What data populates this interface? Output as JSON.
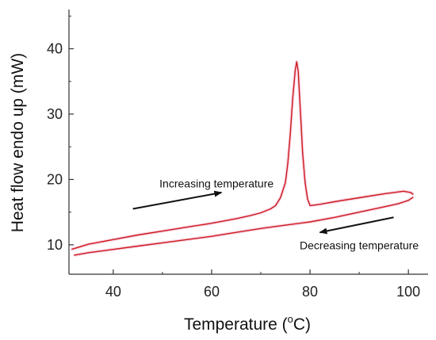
{
  "chart_data": {
    "type": "line",
    "xlabel": "Temperature (",
    "xlabel_sup": "o",
    "xlabel_suffix": "C)",
    "ylabel": "Heat flow endo up (mW)",
    "xlim": [
      31,
      104
    ],
    "ylim": [
      5.5,
      46
    ],
    "xticks": [
      40,
      60,
      80,
      100
    ],
    "yticks": [
      10,
      20,
      30,
      40
    ],
    "grid": false,
    "series": [
      {
        "x": [
          31.5,
          35,
          40,
          45,
          50,
          55,
          60,
          65,
          68,
          70,
          72,
          73,
          74,
          75,
          75.5,
          76,
          76.5,
          77,
          77.3,
          77.6,
          78,
          78.5,
          79,
          79.5,
          80,
          82,
          85,
          90,
          95,
          99,
          100.5,
          101
        ],
        "y": [
          9.3,
          10.1,
          10.8,
          11.5,
          12.1,
          12.7,
          13.3,
          14.0,
          14.5,
          14.9,
          15.5,
          16.0,
          17.2,
          19.5,
          22.5,
          27.0,
          32.5,
          36.8,
          38.0,
          36.5,
          31.0,
          24.0,
          19.5,
          17.0,
          16.0,
          16.2,
          16.6,
          17.2,
          17.8,
          18.2,
          18.0,
          17.7
        ]
      },
      {
        "x": [
          101,
          100,
          98,
          95,
          90,
          85,
          80,
          75,
          70,
          65,
          60,
          55,
          50,
          45,
          40,
          35,
          32
        ],
        "y": [
          17.3,
          16.8,
          16.3,
          15.8,
          15.0,
          14.2,
          13.5,
          13.0,
          12.5,
          11.9,
          11.3,
          10.8,
          10.3,
          9.8,
          9.3,
          8.8,
          8.4
        ]
      }
    ],
    "line_color": "#cc1a1a",
    "annotations": [
      {
        "text": "Increasing temperature",
        "x": 61,
        "y": 18.8,
        "arrow_from": [
          44,
          15.5
        ],
        "arrow_to": [
          62,
          18.0
        ]
      },
      {
        "text": "Decreasing temperature",
        "x": 90,
        "y": 9.3,
        "arrow_from": [
          97,
          14.2
        ],
        "arrow_to": [
          82,
          11.9
        ]
      }
    ]
  }
}
